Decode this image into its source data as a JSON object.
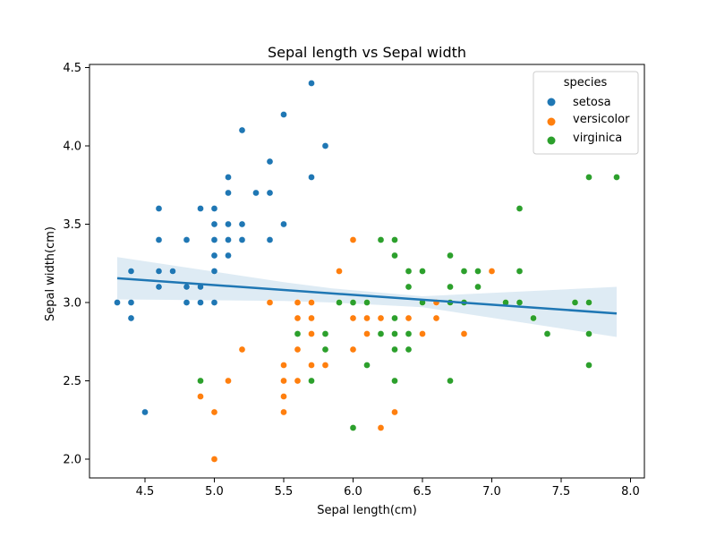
{
  "chart_data": {
    "type": "scatter",
    "title": "Sepal length vs Sepal width",
    "xlabel": "Sepal length(cm)",
    "ylabel": "Sepal width(cm)",
    "xlim": [
      4.1,
      8.1
    ],
    "ylim": [
      1.88,
      4.52
    ],
    "xticks": [
      4.5,
      5.0,
      5.5,
      6.0,
      6.5,
      7.0,
      7.5,
      8.0
    ],
    "yticks": [
      2.0,
      2.5,
      3.0,
      3.5,
      4.0,
      4.5
    ],
    "grid": false,
    "legend": {
      "title": "species",
      "placement": "top-right"
    },
    "series": [
      {
        "name": "setosa",
        "color": "#1f77b4",
        "points": [
          [
            4.3,
            3.0
          ],
          [
            4.4,
            3.2
          ],
          [
            4.4,
            3.0
          ],
          [
            4.4,
            2.9
          ],
          [
            4.5,
            2.3
          ],
          [
            4.6,
            3.6
          ],
          [
            4.6,
            3.4
          ],
          [
            4.6,
            3.2
          ],
          [
            4.6,
            3.1
          ],
          [
            4.7,
            3.2
          ],
          [
            4.8,
            3.4
          ],
          [
            4.8,
            3.1
          ],
          [
            4.8,
            3.0
          ],
          [
            4.9,
            3.6
          ],
          [
            4.9,
            3.1
          ],
          [
            4.9,
            3.0
          ],
          [
            5.0,
            3.6
          ],
          [
            5.0,
            3.5
          ],
          [
            5.0,
            3.4
          ],
          [
            5.0,
            3.3
          ],
          [
            5.0,
            3.2
          ],
          [
            5.0,
            3.0
          ],
          [
            5.1,
            3.8
          ],
          [
            5.1,
            3.7
          ],
          [
            5.1,
            3.5
          ],
          [
            5.1,
            3.4
          ],
          [
            5.1,
            3.3
          ],
          [
            5.2,
            4.1
          ],
          [
            5.2,
            3.5
          ],
          [
            5.2,
            3.4
          ],
          [
            5.3,
            3.7
          ],
          [
            5.4,
            3.9
          ],
          [
            5.4,
            3.7
          ],
          [
            5.4,
            3.4
          ],
          [
            5.5,
            4.2
          ],
          [
            5.5,
            3.5
          ],
          [
            5.7,
            4.4
          ],
          [
            5.7,
            3.8
          ],
          [
            5.8,
            4.0
          ]
        ]
      },
      {
        "name": "versicolor",
        "color": "#ff7f0e",
        "points": [
          [
            4.9,
            2.4
          ],
          [
            5.0,
            2.3
          ],
          [
            5.0,
            2.0
          ],
          [
            5.1,
            2.5
          ],
          [
            5.2,
            2.7
          ],
          [
            5.4,
            3.0
          ],
          [
            5.5,
            2.6
          ],
          [
            5.5,
            2.5
          ],
          [
            5.5,
            2.4
          ],
          [
            5.5,
            2.3
          ],
          [
            5.6,
            3.0
          ],
          [
            5.6,
            2.9
          ],
          [
            5.6,
            2.7
          ],
          [
            5.6,
            2.5
          ],
          [
            5.7,
            3.0
          ],
          [
            5.7,
            2.9
          ],
          [
            5.7,
            2.8
          ],
          [
            5.7,
            2.6
          ],
          [
            5.8,
            2.7
          ],
          [
            5.8,
            2.6
          ],
          [
            5.9,
            3.2
          ],
          [
            5.9,
            3.0
          ],
          [
            6.0,
            3.4
          ],
          [
            6.0,
            2.9
          ],
          [
            6.0,
            2.7
          ],
          [
            6.0,
            2.2
          ],
          [
            6.1,
            3.0
          ],
          [
            6.1,
            2.9
          ],
          [
            6.1,
            2.8
          ],
          [
            6.2,
            2.9
          ],
          [
            6.2,
            2.2
          ],
          [
            6.3,
            2.5
          ],
          [
            6.3,
            2.3
          ],
          [
            6.3,
            3.3
          ],
          [
            6.4,
            3.2
          ],
          [
            6.4,
            2.9
          ],
          [
            6.5,
            2.8
          ],
          [
            6.6,
            3.0
          ],
          [
            6.6,
            2.9
          ],
          [
            6.7,
            3.1
          ],
          [
            6.7,
            3.0
          ],
          [
            6.8,
            2.8
          ],
          [
            6.9,
            3.1
          ],
          [
            7.0,
            3.2
          ]
        ]
      },
      {
        "name": "virginica",
        "color": "#2ca02c",
        "points": [
          [
            4.9,
            2.5
          ],
          [
            5.6,
            2.8
          ],
          [
            5.7,
            2.5
          ],
          [
            5.8,
            2.8
          ],
          [
            5.8,
            2.7
          ],
          [
            5.9,
            3.0
          ],
          [
            6.0,
            3.0
          ],
          [
            6.0,
            2.2
          ],
          [
            6.1,
            3.0
          ],
          [
            6.1,
            2.6
          ],
          [
            6.2,
            3.4
          ],
          [
            6.2,
            2.8
          ],
          [
            6.3,
            3.4
          ],
          [
            6.3,
            3.3
          ],
          [
            6.3,
            2.9
          ],
          [
            6.3,
            2.8
          ],
          [
            6.3,
            2.7
          ],
          [
            6.3,
            2.5
          ],
          [
            6.4,
            3.2
          ],
          [
            6.4,
            3.1
          ],
          [
            6.4,
            2.8
          ],
          [
            6.4,
            2.7
          ],
          [
            6.5,
            3.2
          ],
          [
            6.5,
            3.0
          ],
          [
            6.7,
            3.3
          ],
          [
            6.7,
            3.1
          ],
          [
            6.7,
            3.0
          ],
          [
            6.7,
            2.5
          ],
          [
            6.8,
            3.2
          ],
          [
            6.8,
            3.0
          ],
          [
            6.9,
            3.2
          ],
          [
            6.9,
            3.1
          ],
          [
            7.1,
            3.0
          ],
          [
            7.2,
            3.6
          ],
          [
            7.2,
            3.2
          ],
          [
            7.2,
            3.0
          ],
          [
            7.3,
            2.9
          ],
          [
            7.4,
            2.8
          ],
          [
            7.6,
            3.0
          ],
          [
            7.7,
            3.8
          ],
          [
            7.7,
            3.0
          ],
          [
            7.7,
            2.8
          ],
          [
            7.7,
            2.6
          ],
          [
            7.9,
            3.8
          ]
        ]
      }
    ],
    "regression": {
      "color": "#1f77b4",
      "band_color": "#1f77b4",
      "x_range": [
        4.3,
        7.9
      ],
      "line": [
        [
          4.3,
          3.155
        ],
        [
          7.9,
          2.93
        ]
      ],
      "ci_upper": [
        [
          4.3,
          3.29
        ],
        [
          5.5,
          3.13
        ],
        [
          5.85,
          3.09
        ],
        [
          6.5,
          3.04
        ],
        [
          7.9,
          3.1
        ]
      ],
      "ci_lower": [
        [
          4.3,
          3.02
        ],
        [
          5.5,
          3.01
        ],
        [
          5.85,
          3.0
        ],
        [
          6.5,
          2.97
        ],
        [
          7.9,
          2.78
        ]
      ]
    }
  }
}
